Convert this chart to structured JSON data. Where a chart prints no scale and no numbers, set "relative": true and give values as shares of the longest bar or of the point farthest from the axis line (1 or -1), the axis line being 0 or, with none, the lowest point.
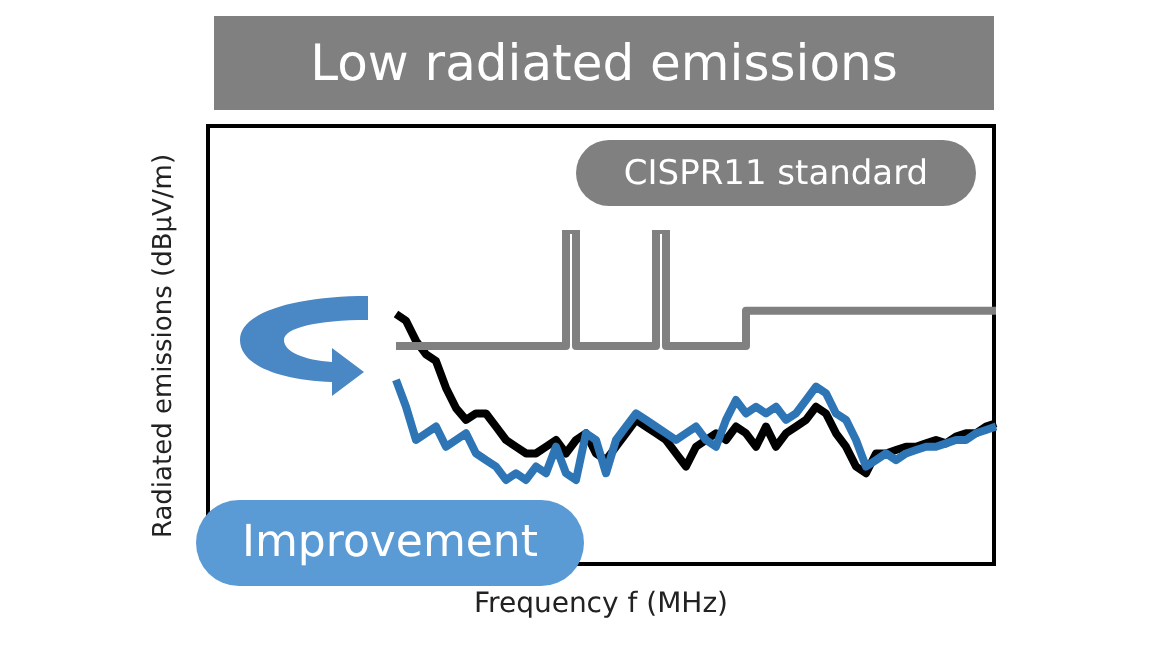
{
  "chart_data": {
    "type": "line",
    "title": "Low radiated emissions",
    "xlabel": "Frequency f (MHz)",
    "ylabel": "Radiated emissions (dBμV/m)",
    "relative": true,
    "categories": [
      null,
      null,
      null,
      null,
      null,
      null,
      null,
      null,
      null,
      null,
      null,
      null,
      null,
      null,
      null,
      null,
      null,
      null,
      null,
      null,
      null,
      null,
      null,
      null,
      null,
      null,
      null,
      null,
      null,
      null,
      null,
      null,
      null,
      null,
      null,
      null,
      null,
      null,
      null,
      null,
      null,
      null,
      null,
      null,
      null,
      null,
      null,
      null,
      null,
      null,
      null,
      null,
      null,
      null,
      null,
      null,
      null,
      null,
      null,
      null,
      null,
      null,
      null,
      null,
      null,
      null,
      null,
      null,
      null,
      null,
      null,
      null,
      null,
      null,
      null,
      null,
      null,
      null,
      null,
      null
    ],
    "series": [
      {
        "color": "#000000",
        "values": [
          null,
          null,
          null,
          null,
          null,
          null,
          null,
          null,
          null,
          null,
          null,
          null,
          null,
          null,
          null,
          null,
          null,
          null,
          null,
          0.75,
          0.73,
          0.67,
          0.63,
          0.61,
          0.53,
          0.47,
          0.435,
          0.454,
          0.454,
          0.415,
          0.375,
          0.355,
          0.335,
          0.335,
          0.355,
          0.375,
          0.335,
          0.375,
          0.395,
          0.335,
          0.315,
          0.355,
          0.395,
          0.435,
          0.415,
          0.395,
          0.375,
          0.335,
          0.296,
          0.355,
          0.375,
          0.395,
          0.375,
          0.415,
          0.395,
          0.355,
          0.415,
          0.355,
          0.395,
          0.415,
          0.435,
          0.474,
          0.454,
          0.395,
          0.355,
          0.296,
          0.276,
          0.335,
          0.335,
          0.345,
          0.355,
          0.355,
          0.365,
          0.375,
          0.365,
          0.385,
          0.395,
          0.395,
          0.415,
          0.425
        ]
      },
      {
        "color": "#2e75b6",
        "values": [
          null,
          null,
          null,
          null,
          null,
          null,
          null,
          null,
          null,
          null,
          null,
          null,
          null,
          null,
          null,
          null,
          null,
          null,
          null,
          0.554,
          0.474,
          0.375,
          0.395,
          0.415,
          0.355,
          0.375,
          0.395,
          0.335,
          0.315,
          0.296,
          0.256,
          0.276,
          0.256,
          0.296,
          0.276,
          0.355,
          0.276,
          0.256,
          0.395,
          0.375,
          0.276,
          0.375,
          0.415,
          0.454,
          0.435,
          0.415,
          0.395,
          0.375,
          0.395,
          0.415,
          0.375,
          0.355,
          0.435,
          0.494,
          0.454,
          0.474,
          0.454,
          0.474,
          0.435,
          0.454,
          0.494,
          0.534,
          0.514,
          0.454,
          0.435,
          0.375,
          0.296,
          0.315,
          0.335,
          0.315,
          0.335,
          0.345,
          0.355,
          0.355,
          0.365,
          0.375,
          0.375,
          0.395,
          0.405,
          0.415
        ]
      },
      {
        "name": "CISPR11 standard",
        "type": "step",
        "color": "#808080",
        "values": [
          null,
          null,
          null,
          null,
          null,
          null,
          null,
          null,
          null,
          null,
          null,
          null,
          null,
          null,
          null,
          null,
          null,
          null,
          null,
          0.655,
          0.655,
          0.655,
          0.655,
          0.655,
          0.655,
          0.655,
          0.655,
          0.655,
          0.655,
          0.655,
          0.655,
          0.655,
          0.655,
          0.655,
          0.655,
          0.655,
          1,
          0.655,
          0.655,
          0.655,
          0.655,
          0.655,
          0.655,
          0.655,
          0.655,
          1,
          0.655,
          0.655,
          0.655,
          0.655,
          0.655,
          0.655,
          0.655,
          0.655,
          0.76,
          0.76,
          0.76,
          0.76,
          0.76,
          0.76,
          0.76,
          0.76,
          0.76,
          0.76,
          0.76,
          0.76,
          0.76,
          0.76,
          0.76,
          0.76,
          0.76,
          0.76,
          0.76,
          0.76,
          0.76,
          0.76,
          0.76,
          0.76,
          0.76,
          0.76
        ]
      }
    ],
    "annotations": [
      "Improvement"
    ]
  }
}
